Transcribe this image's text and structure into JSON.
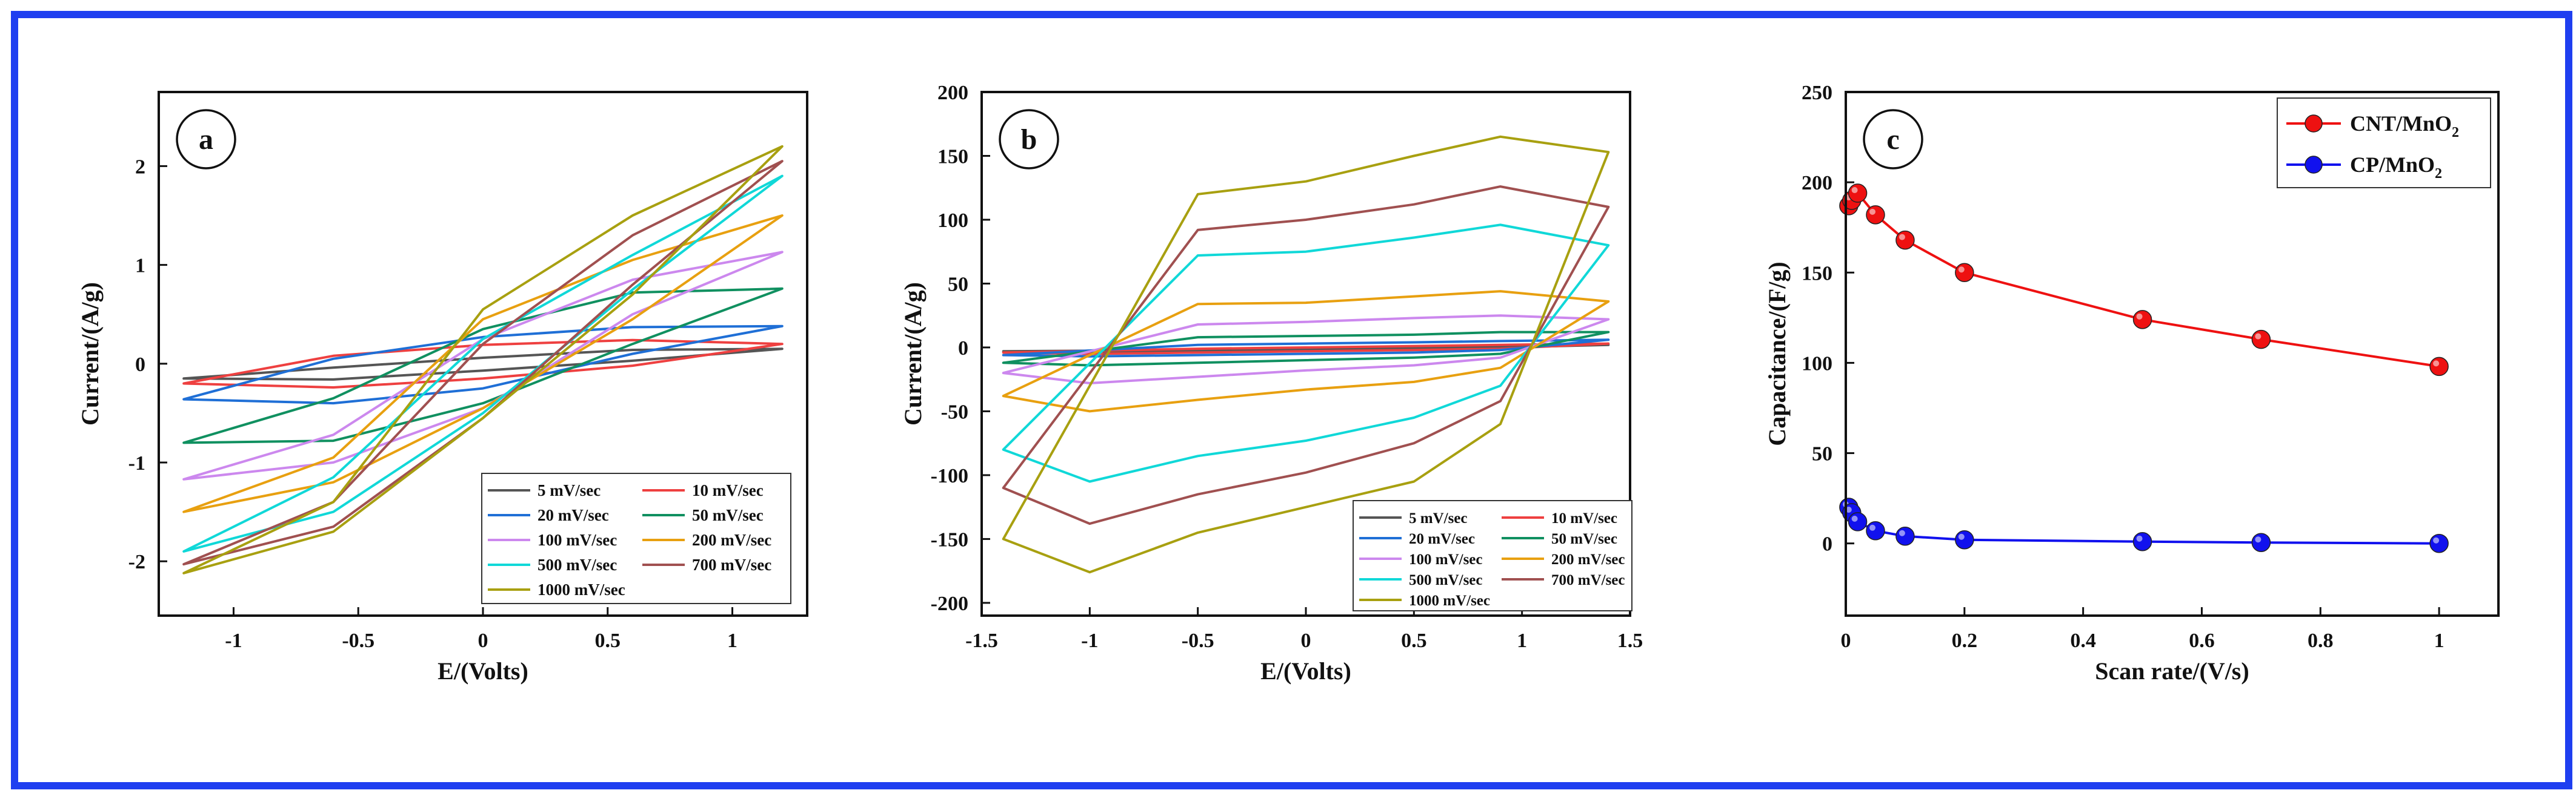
{
  "colors": {
    "frame": "#1f3ff0",
    "s5": "#555555",
    "s10": "#ee4040",
    "s20": "#1f6fd6",
    "s50": "#109060",
    "s100": "#cc88ee",
    "s200": "#e8a010",
    "s500": "#10d8d8",
    "s700": "#a05050",
    "s1000": "#a8a010",
    "cnt": "#ee1111",
    "cp": "#1111ee"
  },
  "chart_data": [
    {
      "type": "line",
      "panel_label": "a",
      "xlabel": "E/(Volts)",
      "ylabel": "Current/(A/g)",
      "xlim": [
        -1.3,
        1.3
      ],
      "ylim": [
        -2.55,
        2.75
      ],
      "xticks": [
        "-1",
        "-0.5",
        "0",
        "0.5",
        "1"
      ],
      "xtick_values": [
        -1,
        -0.5,
        0,
        0.5,
        1
      ],
      "yticks": [
        "-2",
        "-1",
        "0",
        "1",
        "2"
      ],
      "ytick_values": [
        -2,
        -1,
        0,
        1,
        2
      ],
      "legend_position": "bottom-right",
      "series": [
        {
          "name": "5 mV/sec",
          "color_key": "s5",
          "x": [
            -1.2,
            -0.6,
            0,
            0.6,
            1.2,
            0.6,
            0,
            -0.6
          ],
          "y": [
            -0.15,
            -0.04,
            0.06,
            0.14,
            0.15,
            0.03,
            -0.07,
            -0.16
          ]
        },
        {
          "name": "10 mV/sec",
          "color_key": "s10",
          "x": [
            -1.2,
            -0.6,
            0,
            0.6,
            1.2,
            0.6,
            0,
            -0.6
          ],
          "y": [
            -0.2,
            0.08,
            0.19,
            0.24,
            0.2,
            -0.02,
            -0.15,
            -0.24
          ]
        },
        {
          "name": "20 mV/sec",
          "color_key": "s20",
          "x": [
            -1.2,
            -0.6,
            0,
            0.6,
            1.2,
            0.6,
            0,
            -0.6
          ],
          "y": [
            -0.36,
            0.05,
            0.27,
            0.37,
            0.38,
            0.1,
            -0.25,
            -0.4
          ]
        },
        {
          "name": "50 mV/sec",
          "color_key": "s50",
          "x": [
            -1.2,
            -0.6,
            0,
            0.6,
            1.2,
            0.6,
            0,
            -0.6
          ],
          "y": [
            -0.8,
            -0.35,
            0.35,
            0.72,
            0.76,
            0.2,
            -0.4,
            -0.78
          ]
        },
        {
          "name": "100 mV/sec",
          "color_key": "s100",
          "x": [
            -1.2,
            -0.6,
            0,
            0.6,
            1.2,
            0.6,
            0,
            -0.6
          ],
          "y": [
            -1.17,
            -0.72,
            0.25,
            0.85,
            1.13,
            0.5,
            -0.45,
            -1.0
          ]
        },
        {
          "name": "200 mV/sec",
          "color_key": "s200",
          "x": [
            -1.2,
            -0.6,
            0,
            0.6,
            1.2,
            0.6,
            0,
            -0.6
          ],
          "y": [
            -1.5,
            -0.95,
            0.45,
            1.05,
            1.5,
            0.45,
            -0.45,
            -1.2
          ]
        },
        {
          "name": "500 mV/sec",
          "color_key": "s500",
          "x": [
            -1.2,
            -0.6,
            0,
            0.6,
            1.2,
            0.6,
            0,
            -0.6
          ],
          "y": [
            -1.9,
            -1.15,
            0.25,
            1.1,
            1.9,
            0.75,
            -0.5,
            -1.5
          ]
        },
        {
          "name": "700 mV/sec",
          "color_key": "s700",
          "x": [
            -1.2,
            -0.6,
            0,
            0.6,
            1.2,
            0.6,
            0,
            -0.6
          ],
          "y": [
            -2.03,
            -1.4,
            0.2,
            1.3,
            2.05,
            0.8,
            -0.55,
            -1.65
          ]
        },
        {
          "name": "1000 mV/sec",
          "color_key": "s1000",
          "x": [
            -1.2,
            -0.6,
            0,
            0.6,
            1.2,
            0.6,
            0,
            -0.6
          ],
          "y": [
            -2.12,
            -1.4,
            0.55,
            1.5,
            2.2,
            0.7,
            -0.55,
            -1.7
          ]
        }
      ]
    },
    {
      "type": "line",
      "panel_label": "b",
      "xlabel": "E/(Volts)",
      "ylabel": "Current/(A/g)",
      "xlim": [
        -1.5,
        1.5
      ],
      "ylim": [
        -210,
        200
      ],
      "xticks": [
        "-1.5",
        "-1",
        "-0.5",
        "0",
        "0.5",
        "1",
        "1.5"
      ],
      "xtick_values": [
        -1.5,
        -1,
        -0.5,
        0,
        0.5,
        1,
        1.5
      ],
      "yticks": [
        "-200",
        "-150",
        "-100",
        "-50",
        "0",
        "50",
        "100",
        "150",
        "200"
      ],
      "ytick_values": [
        -200,
        -150,
        -100,
        -50,
        0,
        50,
        100,
        150,
        200
      ],
      "legend_position": "bottom-right",
      "series": [
        {
          "name": "5 mV/sec",
          "color_key": "s5",
          "x": [
            -1.4,
            -0.5,
            0,
            0.5,
            0.9,
            1.4,
            0.9,
            0.5,
            0,
            -0.5,
            -1.0
          ],
          "y": [
            -3,
            -2,
            -1,
            0,
            1,
            2,
            0,
            -1,
            -2,
            -3,
            -4
          ]
        },
        {
          "name": "10 mV/sec",
          "color_key": "s10",
          "x": [
            -1.4,
            -0.5,
            0,
            0.5,
            0.9,
            1.4,
            0.9,
            0.5,
            0,
            -0.5,
            -1.0
          ],
          "y": [
            -4,
            -1,
            0,
            1,
            2,
            3,
            -1,
            -2,
            -3,
            -4,
            -5
          ]
        },
        {
          "name": "20 mV/sec",
          "color_key": "s20",
          "x": [
            -1.4,
            -0.5,
            0,
            0.5,
            0.9,
            1.4,
            0.9,
            0.5,
            0,
            -0.5,
            -1.0
          ],
          "y": [
            -6,
            2,
            3,
            4,
            5,
            6,
            -2,
            -4,
            -5,
            -6,
            -7
          ]
        },
        {
          "name": "50 mV/sec",
          "color_key": "s50",
          "x": [
            -1.4,
            -0.5,
            0,
            0.5,
            0.9,
            1.4,
            0.9,
            0.5,
            0,
            -0.5,
            -1.0
          ],
          "y": [
            -12,
            8,
            9,
            10,
            12,
            12,
            -5,
            -8,
            -10,
            -12,
            -14
          ]
        },
        {
          "name": "100 mV/sec",
          "color_key": "s100",
          "x": [
            -1.4,
            -0.5,
            0,
            0.5,
            0.9,
            1.4,
            0.9,
            0.5,
            0,
            -0.5,
            -1.0
          ],
          "y": [
            -20,
            18,
            20,
            23,
            25,
            22,
            -8,
            -14,
            -18,
            -23,
            -28
          ]
        },
        {
          "name": "200 mV/sec",
          "color_key": "s200",
          "x": [
            -1.4,
            -0.5,
            0,
            0.5,
            0.9,
            1.4,
            0.9,
            0.5,
            0,
            -0.5,
            -1.0
          ],
          "y": [
            -38,
            34,
            35,
            40,
            44,
            36,
            -16,
            -27,
            -33,
            -41,
            -50
          ]
        },
        {
          "name": "500 mV/sec",
          "color_key": "s500",
          "x": [
            -1.4,
            -0.5,
            0,
            0.5,
            0.9,
            1.4,
            0.9,
            0.5,
            0,
            -0.5,
            -1.0
          ],
          "y": [
            -80,
            72,
            75,
            86,
            96,
            80,
            -30,
            -55,
            -73,
            -85,
            -105
          ]
        },
        {
          "name": "700 mV/sec",
          "color_key": "s700",
          "x": [
            -1.4,
            -0.5,
            0,
            0.5,
            0.9,
            1.4,
            0.9,
            0.5,
            0,
            -0.5,
            -1.0
          ],
          "y": [
            -110,
            92,
            100,
            112,
            126,
            110,
            -42,
            -75,
            -98,
            -115,
            -138
          ]
        },
        {
          "name": "1000 mV/sec",
          "color_key": "s1000",
          "x": [
            -1.4,
            -0.5,
            0,
            0.5,
            0.9,
            1.4,
            0.9,
            0.5,
            0,
            -0.5,
            -1.0
          ],
          "y": [
            -150,
            120,
            130,
            150,
            165,
            153,
            -60,
            -105,
            -125,
            -145,
            -176
          ]
        }
      ]
    },
    {
      "type": "line",
      "panel_label": "c",
      "xlabel": "Scan rate/(V/s)",
      "ylabel": "Capacitance/(F/g)",
      "xlim": [
        0,
        1.1
      ],
      "ylim": [
        -40,
        250
      ],
      "xticks": [
        "0",
        "0.2",
        "0.4",
        "0.6",
        "0.8",
        "1"
      ],
      "xtick_values": [
        0,
        0.2,
        0.4,
        0.6,
        0.8,
        1
      ],
      "yticks": [
        "0",
        "50",
        "100",
        "150",
        "200",
        "250"
      ],
      "ytick_values": [
        0,
        50,
        100,
        150,
        200,
        250
      ],
      "legend_position": "top-right",
      "series": [
        {
          "name": "CNT/MnO",
          "subscript": "2",
          "color_key": "cnt",
          "x": [
            0.005,
            0.01,
            0.02,
            0.05,
            0.1,
            0.2,
            0.5,
            0.7,
            1.0
          ],
          "y": [
            187,
            190,
            194,
            182,
            168,
            150,
            124,
            113,
            98
          ]
        },
        {
          "name": "CP/MnO",
          "subscript": "2",
          "color_key": "cp",
          "x": [
            0.005,
            0.01,
            0.02,
            0.05,
            0.1,
            0.2,
            0.5,
            0.7,
            1.0
          ],
          "y": [
            20,
            17,
            12,
            7,
            4,
            2,
            1,
            0.5,
            0
          ]
        }
      ]
    }
  ]
}
